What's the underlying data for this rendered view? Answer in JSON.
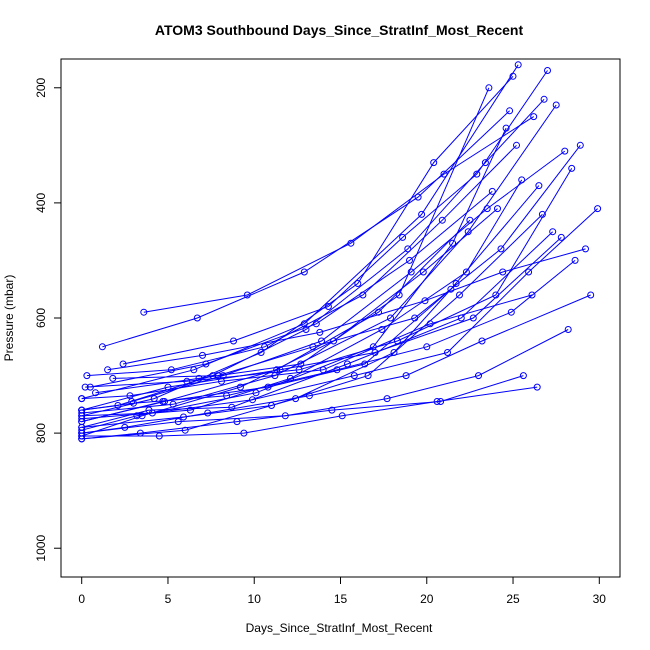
{
  "chart_data": {
    "type": "line",
    "title": "ATOM3 Southbound Days_Since_StratInf_Most_Recent",
    "xlabel": "Days_Since_StratInf_Most_Recent",
    "ylabel": "Pressure (mbar)",
    "xlim": [
      -1.2,
      31.2
    ],
    "ylim": [
      1050,
      150
    ],
    "y_axis_inverted": true,
    "x_ticks": [
      0,
      5,
      10,
      15,
      20,
      25,
      30
    ],
    "y_ticks": [
      200,
      400,
      600,
      800,
      1000
    ],
    "series_color": "#0000ff",
    "marker": "open-circle",
    "grid": false,
    "legend": "none",
    "series": [
      {
        "x": [
          0,
          3.5,
          9.2,
          14.6,
          19.8,
          24.1
        ],
        "y": [
          805,
          770,
          720,
          640,
          520,
          410
        ]
      },
      {
        "x": [
          0,
          4.8,
          11.3,
          17.2,
          22.5
        ],
        "y": [
          780,
          745,
          690,
          590,
          430
        ]
      },
      {
        "x": [
          0,
          2.1,
          7.6,
          13.0,
          18.9,
          23.4,
          26.8
        ],
        "y": [
          760,
          752,
          700,
          620,
          480,
          330,
          220
        ]
      },
      {
        "x": [
          0,
          6.0,
          12.4,
          18.1,
          21.7
        ],
        "y": [
          810,
          795,
          740,
          660,
          540
        ]
      },
      {
        "x": [
          0.3,
          5.2,
          10.6,
          16.3,
          20.9,
          25.2
        ],
        "y": [
          700,
          690,
          650,
          560,
          430,
          300
        ]
      },
      {
        "x": [
          0,
          3.9,
          8.7,
          15.4,
          22.0,
          27.3
        ],
        "y": [
          790,
          760,
          755,
          680,
          600,
          450
        ]
      },
      {
        "x": [
          1.2,
          6.7,
          12.9,
          19.5,
          24.8
        ],
        "y": [
          650,
          600,
          520,
          390,
          240
        ]
      },
      {
        "x": [
          0,
          4.1,
          9.9,
          15.8,
          21.2,
          25.9,
          29.9
        ],
        "y": [
          770,
          765,
          742,
          700,
          660,
          520,
          410
        ]
      },
      {
        "x": [
          0,
          2.8,
          8.1,
          14.0,
          20.2,
          26.1
        ],
        "y": [
          740,
          735,
          710,
          690,
          610,
          560
        ]
      },
      {
        "x": [
          0.5,
          7.2,
          13.6,
          19.0,
          23.8
        ],
        "y": [
          720,
          680,
          610,
          500,
          380
        ]
      },
      {
        "x": [
          0,
          5.6,
          11.8,
          17.7,
          23.0,
          28.2
        ],
        "y": [
          800,
          780,
          770,
          740,
          700,
          620
        ]
      },
      {
        "x": [
          0,
          3.2,
          10.1,
          16.9,
          21.5,
          24.6
        ],
        "y": [
          795,
          770,
          730,
          650,
          470,
          270
        ]
      },
      {
        "x": [
          2.4,
          8.8,
          14.3,
          18.6,
          22.9,
          27.0
        ],
        "y": [
          680,
          640,
          580,
          460,
          350,
          170
        ]
      },
      {
        "x": [
          0,
          6.3,
          12.1,
          17.4,
          22.3,
          25.5
        ],
        "y": [
          775,
          760,
          705,
          620,
          520,
          360
        ]
      },
      {
        "x": [
          0,
          4.5,
          9.4,
          15.1,
          20.6,
          26.4
        ],
        "y": [
          805,
          805,
          800,
          770,
          745,
          720
        ]
      },
      {
        "x": [
          1.8,
          7.9,
          13.4,
          19.3,
          24.3,
          28.9
        ],
        "y": [
          705,
          700,
          650,
          600,
          480,
          300
        ]
      },
      {
        "x": [
          0,
          3.0,
          8.4,
          14.8,
          20.0,
          24.9,
          28.6
        ],
        "y": [
          760,
          748,
          735,
          690,
          650,
          590,
          500
        ]
      },
      {
        "x": [
          0,
          5.9,
          11.0,
          16.6,
          21.9,
          26.7
        ],
        "y": [
          790,
          772,
          752,
          700,
          560,
          420
        ]
      },
      {
        "x": [
          0.8,
          6.8,
          12.7,
          18.4,
          23.6
        ],
        "y": [
          730,
          705,
          680,
          560,
          200
        ]
      },
      {
        "x": [
          0,
          4.2,
          10.4,
          16.0,
          20.4,
          25.0
        ],
        "y": [
          770,
          740,
          660,
          540,
          330,
          180
        ]
      },
      {
        "x": [
          0,
          2.5,
          7.3,
          13.2,
          18.8,
          23.2,
          29.5
        ],
        "y": [
          800,
          790,
          765,
          735,
          700,
          640,
          560
        ]
      },
      {
        "x": [
          3.6,
          9.6,
          15.6,
          21.0,
          26.2
        ],
        "y": [
          590,
          560,
          470,
          350,
          250
        ]
      },
      {
        "x": [
          0,
          5.0,
          11.5,
          17.0,
          22.7,
          27.8
        ],
        "y": [
          760,
          720,
          690,
          660,
          600,
          460
        ]
      },
      {
        "x": [
          0,
          6.5,
          12.9,
          19.7,
          25.3
        ],
        "y": [
          740,
          690,
          610,
          420,
          160
        ]
      },
      {
        "x": [
          1.5,
          7.0,
          13.8,
          19.9,
          24.4,
          29.2
        ],
        "y": [
          690,
          665,
          625,
          570,
          520,
          480
        ]
      },
      {
        "x": [
          0,
          3.4,
          9.0,
          14.5,
          20.8,
          25.6
        ],
        "y": [
          810,
          800,
          780,
          760,
          745,
          700
        ]
      },
      {
        "x": [
          0,
          4.7,
          10.8,
          16.4,
          21.4,
          26.5
        ],
        "y": [
          780,
          745,
          720,
          680,
          550,
          370
        ]
      },
      {
        "x": [
          2.9,
          8.2,
          13.9,
          19.1,
          23.5,
          28.0
        ],
        "y": [
          745,
          700,
          640,
          520,
          410,
          310
        ]
      },
      {
        "x": [
          0,
          5.3,
          11.2,
          17.9,
          22.4,
          27.5
        ],
        "y": [
          765,
          750,
          700,
          600,
          450,
          230
        ]
      },
      {
        "x": [
          0.2,
          6.1,
          12.6,
          18.3,
          24.0,
          28.4
        ],
        "y": [
          720,
          710,
          690,
          640,
          560,
          340
        ]
      }
    ]
  }
}
